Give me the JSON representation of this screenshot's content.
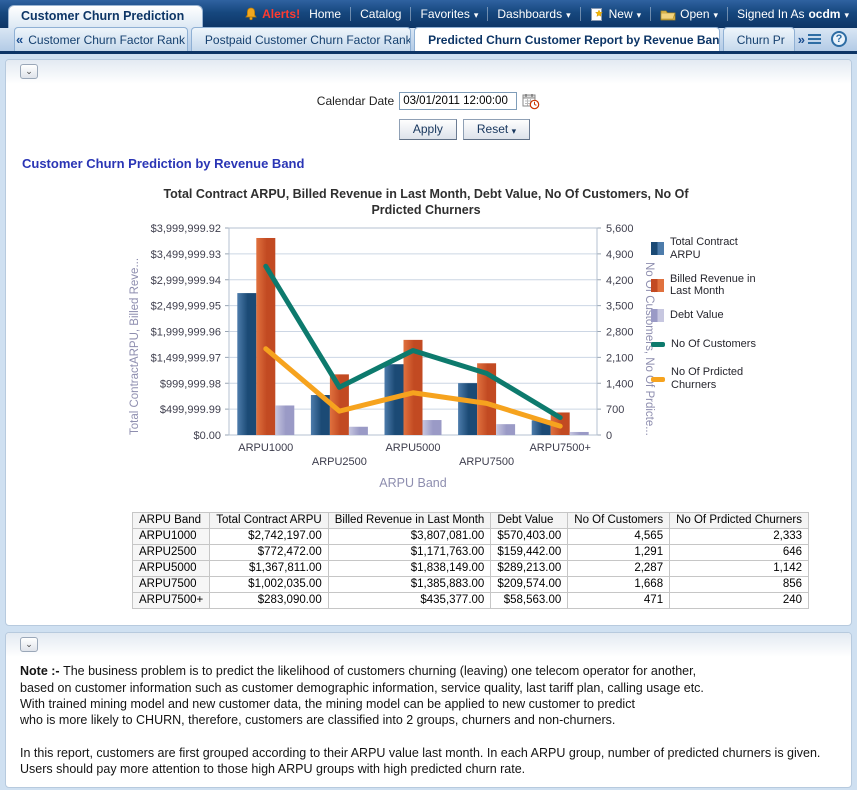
{
  "topbar": {
    "brand": "Customer Churn Prediction",
    "alerts": "Alerts!",
    "home": "Home",
    "catalog": "Catalog",
    "favorites": "Favorites",
    "dashboards": "Dashboards",
    "new_label": "New",
    "open_label": "Open",
    "signed_in_as": "Signed In As",
    "user": "ocdm"
  },
  "tabs": {
    "scroll_left": "«",
    "scroll_right": "»",
    "items": [
      {
        "label": "Customer Churn Factor Rank",
        "active": false
      },
      {
        "label": "Postpaid Customer Churn Factor Rank",
        "active": false
      },
      {
        "label": "Predicted Churn Customer Report by Revenue Band",
        "active": true
      },
      {
        "label": "Churn Pr",
        "active": false
      }
    ],
    "help": "?"
  },
  "prompt": {
    "label": "Calendar Date",
    "value": "03/01/2011 12:00:00",
    "apply": "Apply",
    "reset": "Reset"
  },
  "section_title": "Customer Churn Prediction by Revenue Band",
  "chart_data": {
    "type": "combo-bar-line",
    "title": "Total Contract ARPU, Billed Revenue in Last Month, Debt Value, No Of Customers, No Of Prdicted Churners",
    "title_lines": [
      "Total Contract ARPU, Billed Revenue in Last Month, Debt Value, No Of Customers, No Of",
      "Prdicted Churners"
    ],
    "categories": [
      "ARPU1000",
      "ARPU2500",
      "ARPU5000",
      "ARPU7500",
      "ARPU7500+"
    ],
    "bar_series": [
      {
        "name": "Total Contract ARPU",
        "color": "#1b4a75",
        "color_light": "#4d7cab",
        "values": [
          2742197,
          772472,
          1367811,
          1002035,
          283090
        ]
      },
      {
        "name": "Billed Revenue in Last Month",
        "color": "#c24a22",
        "color_light": "#e0713e",
        "values": [
          3807081,
          1171763,
          1838149,
          1385883,
          435377
        ]
      },
      {
        "name": "Debt Value",
        "color": "#9a9ac6",
        "color_light": "#c7c7e0",
        "values": [
          570403,
          159442,
          289213,
          209574,
          58563
        ]
      }
    ],
    "line_series": [
      {
        "name": "No Of Customers",
        "color": "#0d7a6d",
        "values": [
          4565,
          1291,
          2287,
          1668,
          471
        ]
      },
      {
        "name": "No Of Prdicted Churners",
        "color": "#f6a31e",
        "values": [
          2333,
          646,
          1142,
          856,
          240
        ]
      }
    ],
    "left_axis": {
      "title": "Total ContractARPU, Billed Reve...",
      "max": 3999999.92,
      "labels": [
        "$3,999,999.92",
        "$3,499,999.93",
        "$2,999,999.94",
        "$2,499,999.95",
        "$1,999,999.96",
        "$1,499,999.97",
        "$999,999.98",
        "$499,999.99",
        "$0.00"
      ]
    },
    "right_axis": {
      "title": "No Of Customers, No Of Prdicte...",
      "max": 5600,
      "labels": [
        "5,600",
        "4,900",
        "4,200",
        "3,500",
        "2,800",
        "2,100",
        "1,400",
        "700",
        "0"
      ]
    },
    "xlabel": "ARPU Band",
    "legend_position": "right",
    "grid": true
  },
  "table": {
    "columns": [
      "ARPU Band",
      "Total Contract ARPU",
      "Billed Revenue in Last Month",
      "Debt Value",
      "No Of Customers",
      "No Of Prdicted Churners"
    ],
    "rows": [
      [
        "ARPU1000",
        "$2,742,197.00",
        "$3,807,081.00",
        "$570,403.00",
        "4,565",
        "2,333"
      ],
      [
        "ARPU2500",
        "$772,472.00",
        "$1,171,763.00",
        "$159,442.00",
        "1,291",
        "646"
      ],
      [
        "ARPU5000",
        "$1,367,811.00",
        "$1,838,149.00",
        "$289,213.00",
        "2,287",
        "1,142"
      ],
      [
        "ARPU7500",
        "$1,002,035.00",
        "$1,385,883.00",
        "$209,574.00",
        "1,668",
        "856"
      ],
      [
        "ARPU7500+",
        "$283,090.00",
        "$435,377.00",
        "$58,563.00",
        "471",
        "240"
      ]
    ]
  },
  "note": {
    "bold_prefix": "Note :-",
    "lines": [
      "The business problem is to predict the likelihood of customers churning (leaving) one telecom operator for another,",
      "based on customer information such as customer demographic information, service quality, last tariff plan, calling usage etc.",
      "With trained mining model and new customer data, the mining model can be applied to new customer to predict",
      "who is more likely to CHURN, therefore, customers are classified into 2 groups, churners and non-churners.",
      "",
      "In this report, customers are first grouped according to their ARPU value last month. In each ARPU group, number of predicted churners is given.",
      "Users should pay more attention to those high ARPU groups with high predicted churn rate."
    ]
  },
  "colors": {
    "topbar_navy": "#16477e",
    "active_tab_text": "#0d3566",
    "section_title_blue": "#2a35b5",
    "alerts_red": "#ff3b30"
  }
}
